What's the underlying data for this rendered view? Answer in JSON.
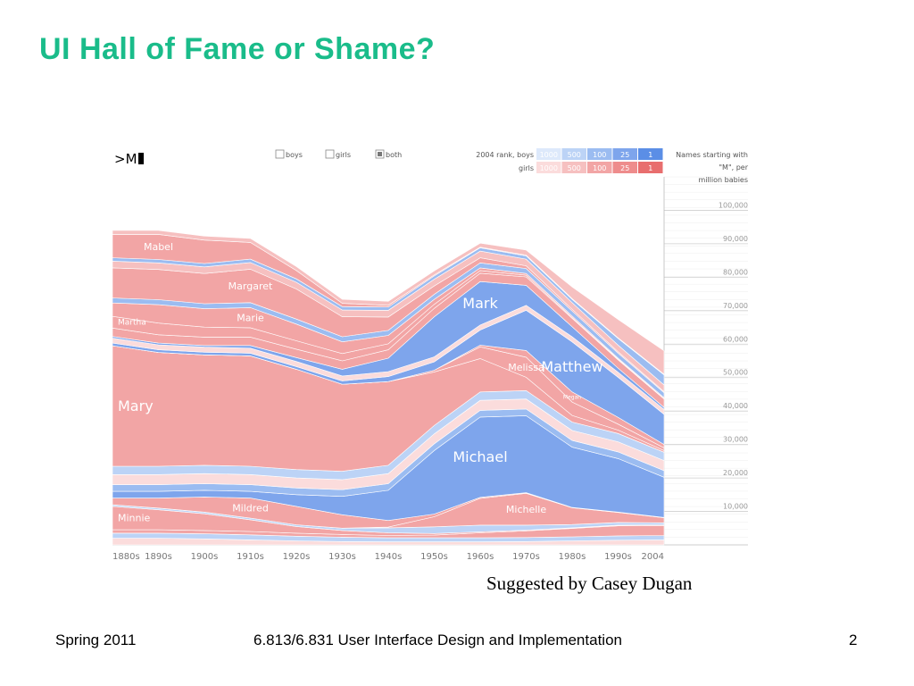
{
  "slide": {
    "title": "UI Hall of Fame or Shame?",
    "credit": "Suggested by Casey Dugan",
    "footer_left": "Spring 2011",
    "footer_center": "6.813/6.831 User Interface Design and Implementation",
    "footer_right": "2"
  },
  "widget": {
    "search_prefix": ">",
    "search_value": "M",
    "checkboxes": [
      {
        "label": "boys",
        "checked": false
      },
      {
        "label": "girls",
        "checked": false
      },
      {
        "label": "both",
        "checked": true
      }
    ],
    "rank_label_boys": "2004 rank, boys",
    "rank_label_girls": "girls",
    "rank_levels": [
      "1000",
      "500",
      "100",
      "25",
      "1"
    ],
    "boy_colors": [
      "#dde9fb",
      "#bcd3f6",
      "#9bbcf1",
      "#7ea5ec",
      "#5b8ee6"
    ],
    "girl_colors": [
      "#fbdcdc",
      "#f6c0c0",
      "#f2a5a5",
      "#ee8c8c",
      "#e86e6e"
    ],
    "y_caption": [
      "Names starting with",
      "\"M\", per",
      "million babies"
    ]
  },
  "chart_data": {
    "type": "area",
    "stacked": true,
    "x": [
      "1880s",
      "1890s",
      "1900s",
      "1910s",
      "1920s",
      "1930s",
      "1940s",
      "1950s",
      "1960s",
      "1970s",
      "1980s",
      "1990s",
      "2004"
    ],
    "xlabel": "",
    "ylabel": "Names starting with \"M\", per million babies",
    "ylim": [
      0,
      110000
    ],
    "y_ticks": [
      10000,
      20000,
      30000,
      40000,
      50000,
      60000,
      70000,
      80000,
      90000,
      100000
    ],
    "y_tick_labels": [
      "10,000",
      "20,000",
      "30,000",
      "40,000",
      "50,000",
      "60,000",
      "70,000",
      "80,000",
      "90,000",
      "100,000"
    ],
    "grid": true,
    "series": [
      {
        "name": "",
        "gender": "girl",
        "values": [
          2000,
          2000,
          1800,
          1500,
          1200,
          1000,
          900,
          900,
          900,
          1000,
          1200,
          1400,
          1500
        ]
      },
      {
        "name": "",
        "gender": "boy",
        "values": [
          1500,
          1500,
          1500,
          1500,
          1400,
          1300,
          1200,
          1200,
          1200,
          1200,
          1200,
          1300,
          1300
        ]
      },
      {
        "name": "",
        "gender": "girl",
        "values": [
          1000,
          1000,
          1000,
          1000,
          900,
          800,
          700,
          800,
          1500,
          2000,
          2500,
          3000,
          3000
        ]
      },
      {
        "name": "Minnie",
        "gender": "girl",
        "values": [
          7000,
          6000,
          5000,
          3500,
          2000,
          1200,
          800,
          500,
          300,
          200,
          200,
          200,
          200
        ]
      },
      {
        "name": "",
        "gender": "boy",
        "values": [
          500,
          500,
          500,
          500,
          500,
          700,
          1500,
          2000,
          2000,
          1500,
          1000,
          800,
          600
        ]
      },
      {
        "name": "Michelle",
        "gender": "girl",
        "values": [
          0,
          0,
          0,
          0,
          0,
          0,
          200,
          3000,
          8000,
          9500,
          5000,
          3000,
          1500
        ]
      },
      {
        "name": "Mildred",
        "gender": "girl",
        "values": [
          2000,
          3000,
          4500,
          6000,
          5500,
          4000,
          2000,
          800,
          300,
          200,
          100,
          100,
          100
        ]
      },
      {
        "name": "Michael",
        "gender": "boy",
        "values": [
          2000,
          2000,
          2000,
          2000,
          3500,
          5500,
          9000,
          19000,
          24000,
          23000,
          18000,
          16000,
          12000
        ]
      },
      {
        "name": "",
        "gender": "boy",
        "values": [
          2000,
          2000,
          2000,
          2000,
          2000,
          2000,
          2000,
          2000,
          2000,
          2000,
          2000,
          2000,
          2000
        ]
      },
      {
        "name": "",
        "gender": "girl",
        "values": [
          3000,
          3000,
          3000,
          3000,
          3000,
          3000,
          3000,
          3000,
          3000,
          3000,
          3000,
          3000,
          3000
        ]
      },
      {
        "name": "",
        "gender": "boy",
        "values": [
          2500,
          2500,
          2500,
          2500,
          2500,
          2500,
          2500,
          2500,
          2500,
          2500,
          2500,
          2500,
          2500
        ]
      },
      {
        "name": "Mary",
        "gender": "girl",
        "values": [
          36000,
          34000,
          33000,
          33000,
          30000,
          26000,
          25000,
          16000,
          10000,
          4000,
          2000,
          1000,
          500
        ]
      },
      {
        "name": "Melissa",
        "gender": "girl",
        "values": [
          0,
          0,
          0,
          0,
          0,
          0,
          0,
          500,
          3500,
          6000,
          4000,
          1800,
          800
        ]
      },
      {
        "name": "Megan",
        "gender": "girl",
        "values": [
          0,
          0,
          0,
          0,
          0,
          0,
          0,
          0,
          500,
          2000,
          3000,
          2000,
          1000
        ]
      },
      {
        "name": "Matthew",
        "gender": "boy",
        "values": [
          800,
          800,
          800,
          800,
          800,
          1000,
          1500,
          2500,
          4500,
          12000,
          15000,
          12000,
          9000
        ]
      },
      {
        "name": "",
        "gender": "girl",
        "values": [
          1500,
          1500,
          1500,
          1500,
          1500,
          1500,
          1500,
          1500,
          1500,
          1500,
          1500,
          1500,
          1500
        ]
      },
      {
        "name": "Mark",
        "gender": "boy",
        "values": [
          500,
          500,
          500,
          800,
          1200,
          2000,
          4000,
          12000,
          13000,
          6000,
          3000,
          1200,
          600
        ]
      },
      {
        "name": "",
        "gender": "girl",
        "values": [
          2500,
          2500,
          2500,
          2500,
          2500,
          2500,
          2500,
          2500,
          2500,
          2500,
          2500,
          2500,
          2500
        ]
      },
      {
        "name": "Martha",
        "gender": "girl",
        "values": [
          3500,
          3500,
          3000,
          2800,
          2500,
          2200,
          1800,
          1200,
          800,
          500,
          300,
          200,
          100
        ]
      },
      {
        "name": "Marie",
        "gender": "girl",
        "values": [
          4000,
          5500,
          5500,
          6000,
          5000,
          3500,
          2500,
          1500,
          800,
          500,
          400,
          300,
          300
        ]
      },
      {
        "name": "",
        "gender": "boy",
        "values": [
          1500,
          1500,
          1500,
          1500,
          1500,
          1500,
          1500,
          1500,
          1500,
          1500,
          1500,
          1500,
          1500
        ]
      },
      {
        "name": "Margaret",
        "gender": "girl",
        "values": [
          9000,
          9000,
          9000,
          10000,
          9000,
          6000,
          4000,
          2500,
          1500,
          800,
          500,
          400,
          300
        ]
      },
      {
        "name": "",
        "gender": "girl",
        "values": [
          2000,
          2000,
          2000,
          2000,
          2000,
          2000,
          2000,
          2000,
          2000,
          2000,
          2000,
          2000,
          2000
        ]
      },
      {
        "name": "",
        "gender": "boy",
        "values": [
          1000,
          1000,
          1000,
          1000,
          1000,
          1000,
          1000,
          1000,
          1000,
          1000,
          1000,
          2000,
          3000
        ]
      },
      {
        "name": "Mabel",
        "gender": "girl",
        "values": [
          7000,
          7500,
          7000,
          5000,
          2500,
          1000,
          500,
          300,
          200,
          200,
          200,
          200,
          200
        ]
      },
      {
        "name": "",
        "gender": "girl",
        "values": [
          1200,
          1200,
          1200,
          1200,
          1200,
          1200,
          1200,
          1200,
          1200,
          1500,
          3500,
          5500,
          7000
        ]
      }
    ]
  }
}
